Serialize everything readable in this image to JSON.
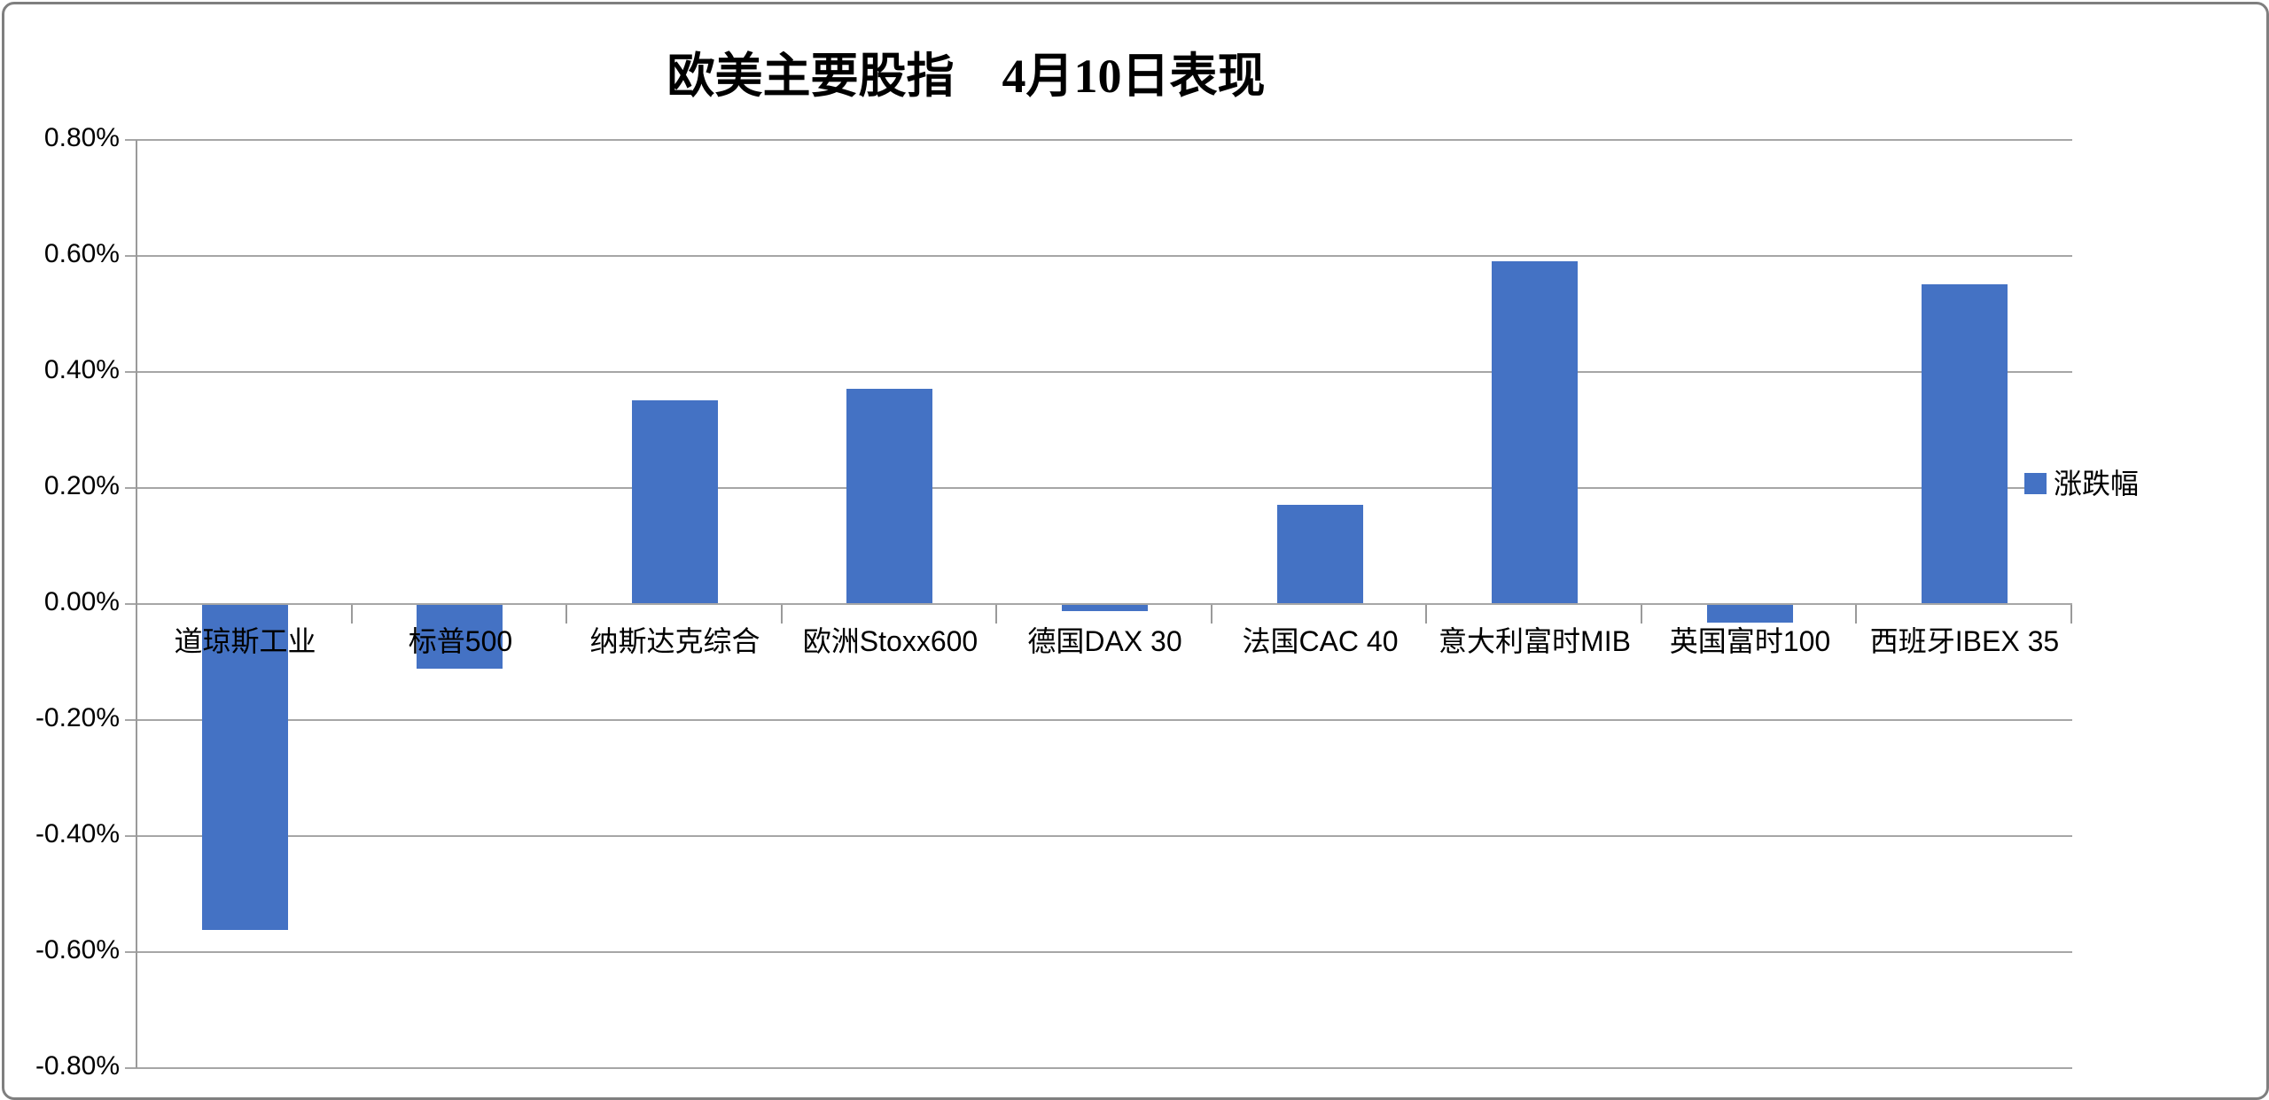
{
  "chart_data": {
    "type": "bar",
    "title": "欧美主要股指　4月10日表现",
    "categories": [
      "道琼斯工业",
      "标普500",
      "纳斯达克综合",
      "欧洲Stoxx600",
      "德国DAX 30",
      "法国CAC 40",
      "意大利富时MIB",
      "英国富时100",
      "西班牙IBEX 35"
    ],
    "series": [
      {
        "name": "涨跌幅",
        "values": [
          -0.56,
          -0.11,
          0.35,
          0.37,
          -0.01,
          0.17,
          0.59,
          -0.03,
          0.55
        ]
      }
    ],
    "unit": "%",
    "xlabel": "",
    "ylabel": "",
    "ylim": [
      -0.8,
      0.8
    ],
    "ytick_step": 0.2,
    "ytick_labels": [
      "0.80%",
      "0.60%",
      "0.40%",
      "0.20%",
      "0.00%",
      "-0.20%",
      "-0.40%",
      "-0.60%",
      "-0.80%"
    ],
    "grid": true,
    "legend_position": "right",
    "colors": {
      "bar": "#4472C4",
      "gridline": "#A6A6A6",
      "axis": "#9A9A9A",
      "text": "#000000",
      "border": "#7F7F7F",
      "background": "#FFFFFF"
    }
  }
}
